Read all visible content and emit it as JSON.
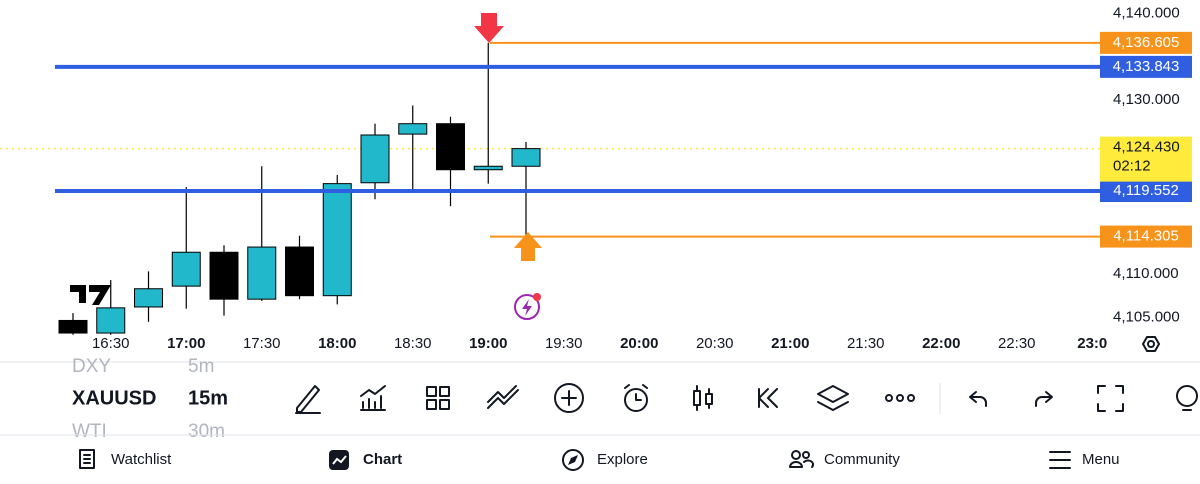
{
  "chart_data": {
    "type": "candlestick",
    "open": [
      4104.65,
      4103.2,
      4106.2,
      4108.6,
      4112.5,
      4107.1,
      4113.1,
      4107.5,
      4120.5,
      4126.1,
      4127.3,
      4122.0,
      4122.4
    ],
    "high": [
      4105.5,
      4109.3,
      4110.3,
      4120.0,
      4113.3,
      4122.4,
      4114.4,
      4121.4,
      4127.3,
      4129.4,
      4128.1,
      4136.605,
      4125.2
    ],
    "low": [
      4103.0,
      4103.0,
      4104.5,
      4106.0,
      4105.2,
      4106.9,
      4107.1,
      4106.5,
      4118.6,
      4119.6,
      4117.8,
      4120.4,
      4114.305
    ],
    "close": [
      4103.2,
      4106.1,
      4108.3,
      4112.5,
      4107.1,
      4113.1,
      4107.5,
      4120.4,
      4126.0,
      4127.3,
      4122.0,
      4122.4,
      4124.43
    ],
    "up_color": "#22b8cc",
    "down_color": "#000000",
    "ylim": [
      4103.55,
      4141.54
    ],
    "yticks": [
      {
        "value": 4140,
        "label": "4,140.000"
      },
      {
        "value": 4130,
        "label": "4,130.000"
      },
      {
        "value": 4110,
        "label": "4,110.000"
      },
      {
        "value": 4105,
        "label": "4,105.000"
      }
    ],
    "xtick_labels": [
      "16:30",
      "17:00",
      "17:30",
      "18:00",
      "18:30",
      "19:00",
      "19:30",
      "20:00",
      "20:30",
      "21:00",
      "21:30",
      "22:00",
      "22:30",
      "23:0"
    ],
    "levels": [
      {
        "value": 4136.605,
        "label": "4,136.605",
        "color": "#f7931a"
      },
      {
        "value": 4133.843,
        "label": "4,133.843",
        "color": "#2f5fe0"
      },
      {
        "value": 4119.552,
        "label": "4,119.552",
        "color": "#2f5fe0"
      },
      {
        "value": 4114.305,
        "label": "4,114.305",
        "color": "#f7931a"
      }
    ],
    "current_price": {
      "value": 4124.43,
      "label": "4,124.430",
      "countdown": "02:12",
      "color": "#ffeb3b"
    }
  },
  "toolbar": {
    "symbol": "XAUUSD",
    "interval": "15m",
    "symbol_above": "DXY",
    "interval_above": "5m",
    "symbol_below": "WTI",
    "interval_below": "30m"
  },
  "nav": [
    "Watchlist",
    "Chart",
    "Explore",
    "Community",
    "Menu"
  ]
}
